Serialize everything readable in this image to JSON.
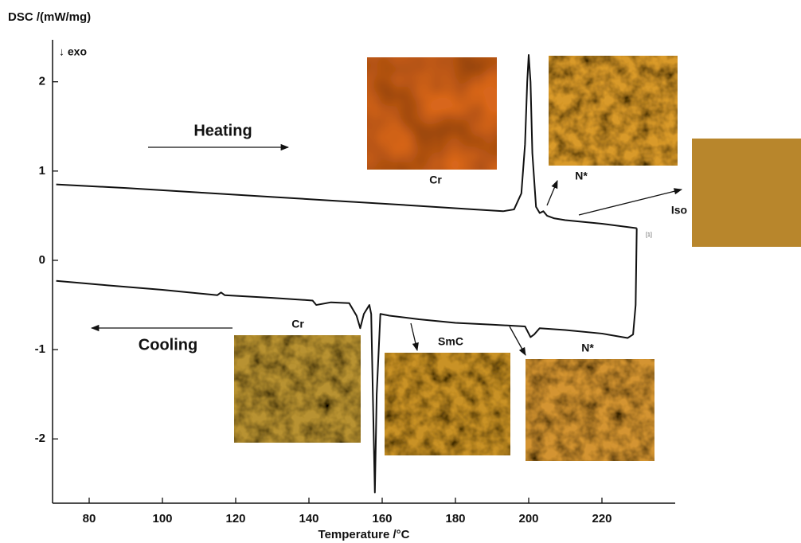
{
  "chart_data": {
    "type": "line",
    "y_label": "DSC /(mW/mg)",
    "y_note": "↓ exo",
    "x_label": "Temperature /°C",
    "xlim": [
      70,
      240
    ],
    "ylim": [
      -2.72,
      2.47
    ],
    "xticks": [
      80,
      100,
      120,
      140,
      160,
      180,
      200,
      220
    ],
    "yticks": [
      -2,
      -1,
      0,
      1,
      2
    ],
    "series": [
      {
        "name": "Heating",
        "color": "#111111",
        "x": [
          71,
          90,
          110,
          130,
          150,
          170,
          185,
          193,
          196,
          198,
          199,
          199.6,
          200,
          200.5,
          201,
          202,
          203,
          204,
          205,
          207,
          210,
          220,
          229.5
        ],
        "values": [
          0.85,
          0.81,
          0.76,
          0.71,
          0.66,
          0.61,
          0.57,
          0.55,
          0.57,
          0.75,
          1.3,
          2.0,
          2.3,
          2.0,
          1.2,
          0.6,
          0.53,
          0.55,
          0.5,
          0.47,
          0.45,
          0.41,
          0.36
        ]
      },
      {
        "name": "Cooling",
        "color": "#111111",
        "x": [
          229.5,
          229.2,
          228.5,
          227,
          220,
          210,
          203,
          201.5,
          200.5,
          199,
          190,
          180,
          170,
          162,
          159.5,
          158.5,
          158,
          157.6,
          157,
          156.5,
          155,
          154,
          153,
          151,
          146,
          142,
          141,
          130,
          117,
          116,
          115,
          100,
          85,
          71
        ],
        "values": [
          0.36,
          -0.5,
          -0.83,
          -0.87,
          -0.82,
          -0.78,
          -0.76,
          -0.83,
          -0.86,
          -0.74,
          -0.72,
          -0.7,
          -0.66,
          -0.62,
          -0.6,
          -1.5,
          -2.6,
          -1.8,
          -0.6,
          -0.5,
          -0.6,
          -0.76,
          -0.62,
          -0.48,
          -0.47,
          -0.5,
          -0.45,
          -0.42,
          -0.39,
          -0.36,
          -0.39,
          -0.33,
          -0.28,
          -0.23
        ]
      }
    ],
    "annotations": [
      "Cr",
      "N*",
      "Iso",
      "Cr",
      "SmC",
      "N*",
      "[1]"
    ]
  }
}
